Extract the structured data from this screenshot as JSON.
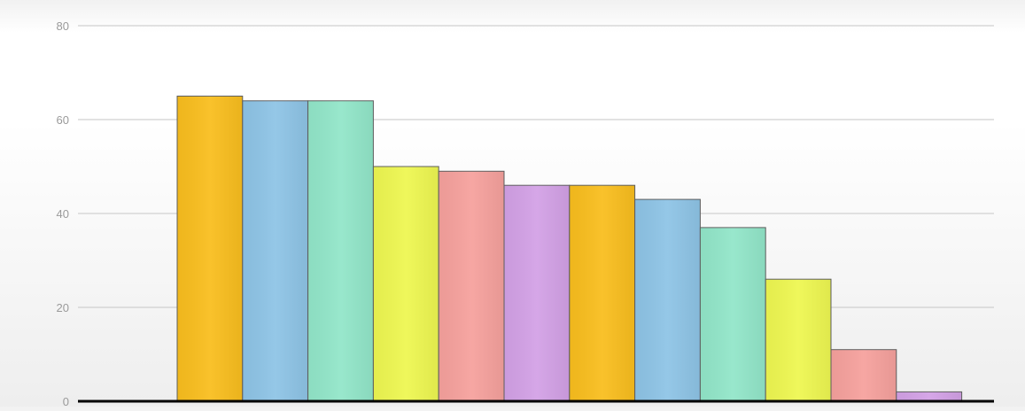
{
  "chart_data": {
    "type": "bar",
    "title": "",
    "xlabel": "",
    "ylabel": "",
    "ylim": [
      0,
      80
    ],
    "yticks": [
      0,
      20,
      40,
      60,
      80
    ],
    "grid": true,
    "values": [
      65,
      64,
      64,
      50,
      49,
      46,
      46,
      43,
      37,
      26,
      11,
      2
    ],
    "colors": [
      "#f9be1e",
      "#8ec4e6",
      "#92e6c9",
      "#eef751",
      "#f6a19d",
      "#d3a1e6",
      "#f9be1e",
      "#8ec4e6",
      "#92e6c9",
      "#eef751",
      "#f6a19d",
      "#d3a1e6"
    ]
  }
}
